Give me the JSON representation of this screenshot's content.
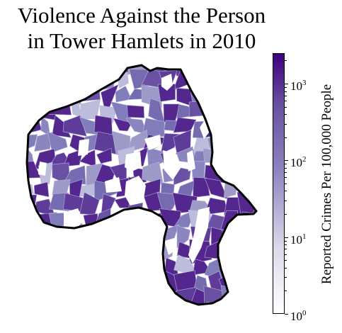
{
  "title_line1": "Violence Against the Person",
  "title_line2": "in Tower Hamlets in 2010",
  "colorbar": {
    "label": "Reported Crimes Per 100,000 People",
    "scale": "log",
    "range": [
      1,
      2500
    ],
    "ticks": [
      {
        "base": "10",
        "exp": "0",
        "value": 1
      },
      {
        "base": "10",
        "exp": "1",
        "value": 10
      },
      {
        "base": "10",
        "exp": "2",
        "value": 100
      },
      {
        "base": "10",
        "exp": "3",
        "value": 1000
      }
    ],
    "colors": {
      "low": "#ffffff",
      "mid": "#8d84c0",
      "high": "#3f007d",
      "no_data": "#ffffff",
      "boundary": "#000000"
    }
  }
}
